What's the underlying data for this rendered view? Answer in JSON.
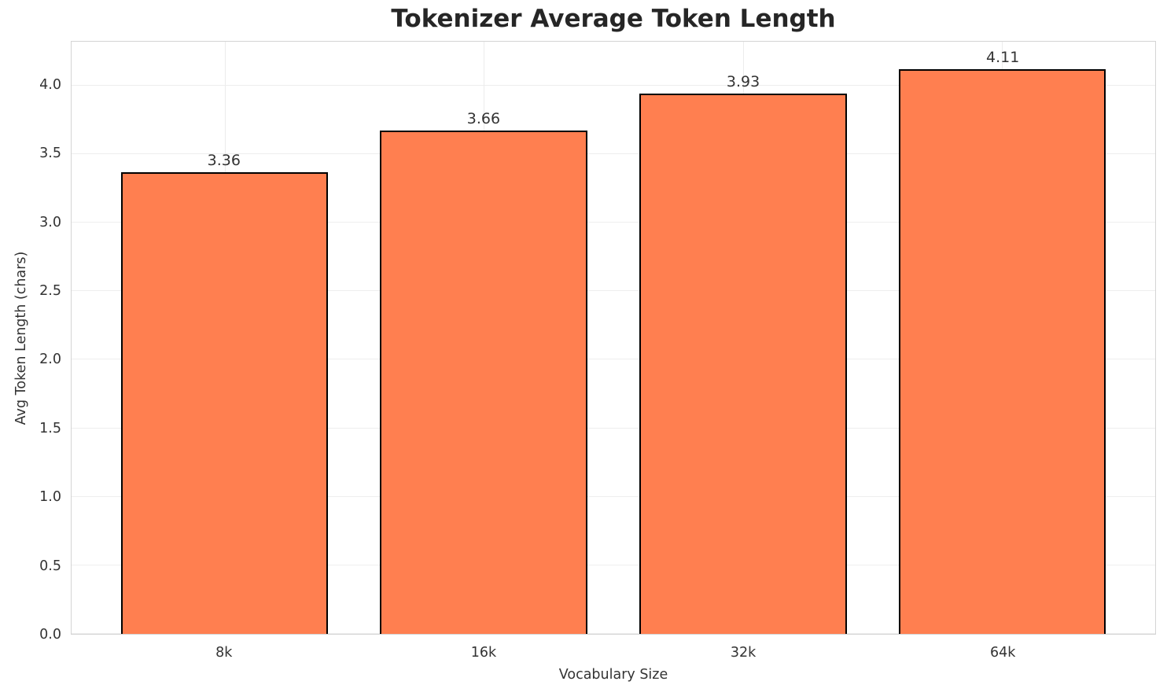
{
  "chart_data": {
    "type": "bar",
    "title": "Tokenizer Average Token Length",
    "xlabel": "Vocabulary Size",
    "ylabel": "Avg Token Length (chars)",
    "categories": [
      "8k",
      "16k",
      "32k",
      "64k"
    ],
    "values": [
      3.36,
      3.66,
      3.93,
      4.11
    ],
    "value_labels": [
      "3.36",
      "3.66",
      "3.93",
      "4.11"
    ],
    "ytick_labels": [
      "0.0",
      "0.5",
      "1.0",
      "1.5",
      "2.0",
      "2.5",
      "3.0",
      "3.5",
      "4.0"
    ],
    "yticks": [
      0.0,
      0.5,
      1.0,
      1.5,
      2.0,
      2.5,
      3.0,
      3.5,
      4.0
    ],
    "ylim": [
      0,
      4.32
    ],
    "grid": true,
    "legend_position": "none",
    "colors": {
      "bar_fill": "#FF7F50",
      "bar_edge": "#000000",
      "grid": "#eeeeee",
      "spine": "#d4d4d4",
      "title_text": "#262626",
      "tick_text": "#333333",
      "background": "#ffffff"
    }
  }
}
